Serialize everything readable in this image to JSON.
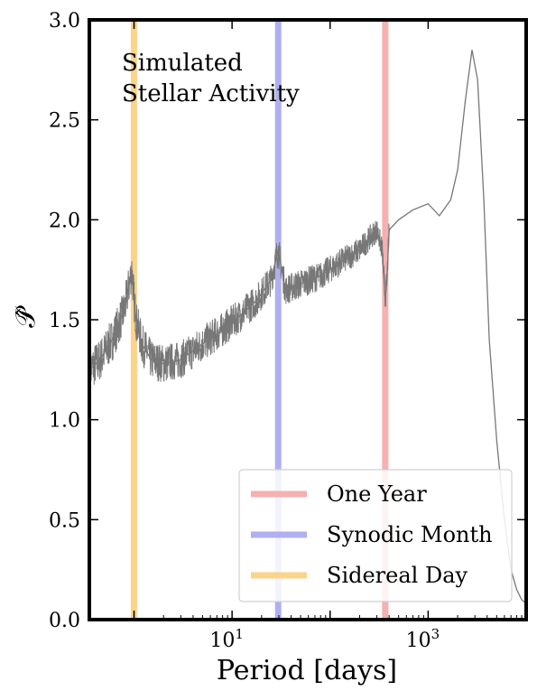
{
  "chart_data": {
    "type": "line",
    "xlabel": "Period [days]",
    "ylabel": "𝒫̂",
    "x_scale": "log",
    "xlim": [
      0.35,
      10000
    ],
    "ylim": [
      0,
      3.0
    ],
    "x_tick_labels": [
      {
        "base": "10",
        "exp": "1",
        "value": 10
      },
      {
        "base": "10",
        "exp": "3",
        "value": 1000
      }
    ],
    "y_ticks": [
      0.0,
      0.5,
      1.0,
      1.5,
      2.0,
      2.5,
      3.0
    ],
    "y_tick_labels": [
      "0.0",
      "0.5",
      "1.0",
      "1.5",
      "2.0",
      "2.5",
      "3.0"
    ],
    "annotation": [
      "Simulated",
      "Stellar Activity"
    ],
    "vertical_lines": [
      {
        "name": "One Year",
        "x": 365.25,
        "color": "#f5b0b0"
      },
      {
        "name": "Synodic Month",
        "x": 29.53,
        "color": "#b0b0f0"
      },
      {
        "name": "Sidereal Day",
        "x": 0.997,
        "color": "#fcd38a"
      }
    ],
    "legend": {
      "placement": "lower right",
      "entries": [
        "One Year",
        "Synodic Month",
        "Sidereal Day"
      ]
    },
    "series": [
      {
        "color": "#777777",
        "x": [
          0.35,
          0.45,
          0.6,
          0.8,
          0.95,
          1.0,
          1.05,
          1.2,
          1.5,
          2,
          3,
          5,
          8,
          12,
          18,
          25,
          29.5,
          35,
          50,
          80,
          120,
          200,
          300,
          340,
          365,
          380,
          400,
          500,
          700,
          1000,
          1300,
          1700,
          2000,
          2400,
          2800,
          3200,
          3700,
          4200,
          5000,
          6000,
          7000,
          8000,
          9000,
          10000
        ],
        "y": [
          1.25,
          1.3,
          1.4,
          1.55,
          1.75,
          1.6,
          1.5,
          1.38,
          1.3,
          1.28,
          1.3,
          1.38,
          1.45,
          1.52,
          1.6,
          1.7,
          1.85,
          1.65,
          1.68,
          1.72,
          1.78,
          1.85,
          1.95,
          1.85,
          1.6,
          1.7,
          1.95,
          2.0,
          2.05,
          2.08,
          2.02,
          2.1,
          2.25,
          2.6,
          2.85,
          2.7,
          2.1,
          1.4,
          0.9,
          0.5,
          0.25,
          0.15,
          0.1,
          0.08
        ]
      }
    ]
  }
}
